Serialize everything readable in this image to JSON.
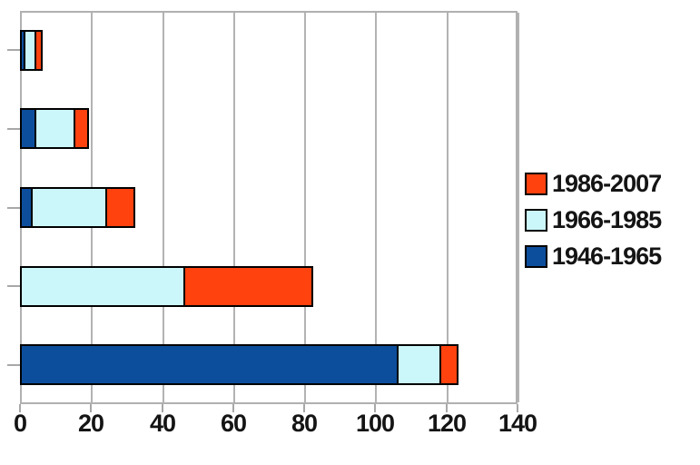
{
  "chart_data": {
    "type": "bar",
    "orientation": "horizontal",
    "stacked": true,
    "title": "",
    "xlabel": "",
    "ylabel": "",
    "categories": [
      "",
      "",
      "",
      "",
      ""
    ],
    "series": [
      {
        "name": "1946-1965",
        "color": "#0d4e9c",
        "values": [
          1,
          4,
          3,
          0,
          106
        ]
      },
      {
        "name": "1966-1985",
        "color": "#ccf7fa",
        "values": [
          3,
          11,
          21,
          46,
          12
        ]
      },
      {
        "name": "1986-2007",
        "color": "#ff420e",
        "values": [
          2,
          4,
          8,
          36,
          5
        ]
      }
    ],
    "row_totals": [
      6,
      19,
      32,
      82,
      123
    ],
    "xlim": [
      0,
      140
    ],
    "x_ticks": [
      0,
      20,
      40,
      60,
      80,
      100,
      120,
      140
    ],
    "grid": "vertical",
    "legend_position": "right"
  },
  "legend": {
    "items": [
      {
        "label": "1986-2007",
        "color": "#ff420e"
      },
      {
        "label": "1966-1985",
        "color": "#ccf7fa"
      },
      {
        "label": "1946-1965",
        "color": "#0d4e9c"
      }
    ]
  },
  "colors": {
    "background": "#ffffff",
    "grid": "#b3b3b3",
    "axis": "#b0b0b0",
    "bar_border": "#000000",
    "text": "#141414"
  }
}
